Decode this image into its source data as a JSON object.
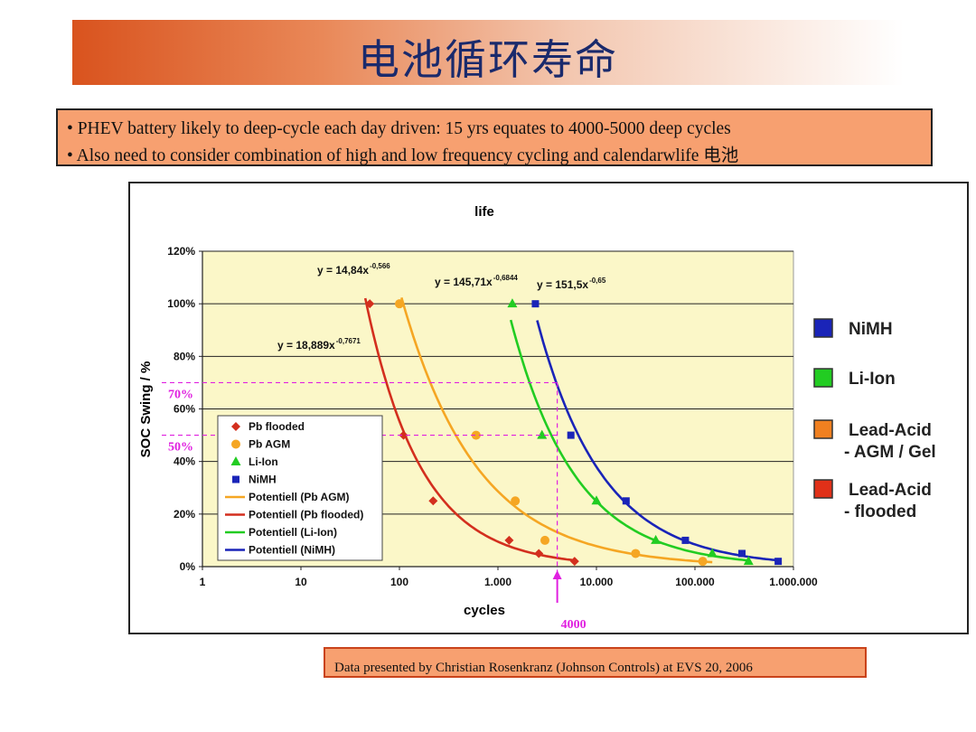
{
  "slide": {
    "title": "电池循环寿命",
    "bullets": [
      "• PHEV battery likely to deep-cycle each day driven:  15 yrs equates to 4000-5000 deep cycles",
      "• Also need to consider combination of high and low frequency cycling and calendarwlife 电池"
    ],
    "footer": "Data presented by Christian Rosenkranz (Johnson Controls) at EVS 20, 2006"
  },
  "chart_data": {
    "type": "scatter",
    "title": "life",
    "xlabel": "cycles",
    "ylabel": "SOC Swing / %",
    "x_scale": "log",
    "xlim": [
      1,
      1000000
    ],
    "ylim": [
      0,
      120
    ],
    "x_ticks": [
      "1",
      "10",
      "100",
      "1.000",
      "10.000",
      "100.000",
      "1.000.000"
    ],
    "y_ticks": [
      "0%",
      "20%",
      "40%",
      "60%",
      "80%",
      "100%",
      "120%"
    ],
    "grid": true,
    "legend_position": "lower-left",
    "series": [
      {
        "name": "Pb flooded",
        "color": "#d32f1e",
        "marker": "diamond",
        "points": [
          [
            50,
            100
          ],
          [
            110,
            50
          ],
          [
            220,
            25
          ],
          [
            1300,
            10
          ],
          [
            2600,
            5
          ],
          [
            6000,
            2
          ]
        ]
      },
      {
        "name": "Pb AGM",
        "color": "#f5a623",
        "marker": "circle",
        "points": [
          [
            100,
            100
          ],
          [
            600,
            50
          ],
          [
            1500,
            25
          ],
          [
            3000,
            10
          ],
          [
            25000,
            5
          ],
          [
            120000,
            2
          ]
        ]
      },
      {
        "name": "Li-Ion",
        "color": "#22cc22",
        "marker": "triangle",
        "points": [
          [
            1400,
            100
          ],
          [
            2800,
            50
          ],
          [
            10000,
            25
          ],
          [
            40000,
            10
          ],
          [
            150000,
            5
          ],
          [
            350000,
            2
          ]
        ]
      },
      {
        "name": "NiMH",
        "color": "#1a24b8",
        "marker": "square",
        "points": [
          [
            2400,
            100
          ],
          [
            5500,
            50
          ],
          [
            20000,
            25
          ],
          [
            80000,
            10
          ],
          [
            300000,
            5
          ],
          [
            700000,
            2
          ]
        ]
      }
    ],
    "trendlines": [
      {
        "name": "Potentiell (Pb AGM)",
        "color": "#f5a623",
        "equation": "y = 14,84x",
        "exponent": "-0,566",
        "range": [
          105,
          150000
        ]
      },
      {
        "name": "Potentiell (Pb flooded)",
        "color": "#d32f1e",
        "equation": "y = 18,889x",
        "exponent": "-0,7671",
        "range": [
          45,
          6000
        ]
      },
      {
        "name": "Potentiell (Li-Ion)",
        "color": "#22cc22",
        "equation": "y = 145,71x",
        "exponent": "-0,6844",
        "range": [
          1350,
          350000
        ]
      },
      {
        "name": "Potentiell (NiMH)",
        "color": "#1a24b8",
        "equation": "y = 151,5x",
        "exponent": "-0,65",
        "range": [
          2500,
          750000
        ]
      }
    ],
    "annotations": {
      "h_lines": [
        {
          "label": "70%",
          "y": 70
        },
        {
          "label": "50%",
          "y": 50
        }
      ],
      "v_line": {
        "label": "4000",
        "x": 4000
      },
      "color": "#e020e0"
    },
    "side_legend": [
      {
        "label": "NiMH",
        "color": "#1a24b8"
      },
      {
        "label": "Li-Ion",
        "color": "#22cc22"
      },
      {
        "label": "Lead-Acid\n- AGM / Gel",
        "color": "#f08020"
      },
      {
        "label": "Lead-Acid\n- flooded",
        "color": "#e03018"
      }
    ]
  }
}
